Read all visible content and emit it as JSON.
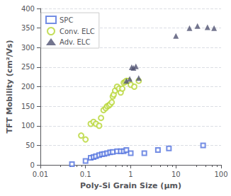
{
  "chart_data": {
    "type": "scatter",
    "xlabel": "Poly-Si Grain Size (μm)",
    "ylabel": "TFT Mobility (cm²/Vs)",
    "series": [
      {
        "name": "SPC",
        "marker": "open_square",
        "x": [
          0.05,
          0.1,
          0.13,
          0.15,
          0.17,
          0.2,
          0.23,
          0.26,
          0.3,
          0.35,
          0.4,
          0.5,
          0.6,
          0.7,
          0.8,
          1.0,
          2.0,
          4.0,
          7.0,
          40.0
        ],
        "values": [
          2,
          10,
          18,
          20,
          22,
          25,
          27,
          28,
          30,
          32,
          33,
          35,
          35,
          35,
          38,
          30,
          30,
          38,
          42,
          50
        ]
      },
      {
        "name": "Conv. ELC",
        "marker": "open_circle",
        "x": [
          0.08,
          0.1,
          0.13,
          0.15,
          0.17,
          0.2,
          0.22,
          0.25,
          0.28,
          0.3,
          0.33,
          0.35,
          0.38,
          0.4,
          0.42,
          0.45,
          0.5,
          0.55,
          0.6,
          0.65,
          0.7,
          0.75,
          0.8,
          0.9,
          1.0,
          1.2,
          1.5
        ],
        "values": [
          75,
          65,
          105,
          110,
          105,
          100,
          120,
          140,
          145,
          150,
          152,
          155,
          160,
          175,
          180,
          190,
          200,
          195,
          185,
          195,
          210,
          212,
          215,
          215,
          205,
          200,
          215
        ]
      },
      {
        "name": "Adv. ELC",
        "marker": "triangle",
        "x": [
          0.8,
          0.95,
          1.05,
          1.15,
          1.3,
          1.5,
          10.0,
          20.0,
          30.0,
          50.0,
          70.0
        ],
        "values": [
          215,
          220,
          250,
          248,
          252,
          222,
          330,
          350,
          355,
          352,
          350
        ]
      }
    ],
    "xlim": [
      0.01,
      100
    ],
    "xticks": [
      0.01,
      0.1,
      1,
      10,
      100
    ],
    "ylim": [
      0,
      400
    ],
    "yticks": [
      0,
      50,
      100,
      150,
      200,
      250,
      300,
      350,
      400
    ],
    "log": "x",
    "grid": "y",
    "legend": "upper left"
  }
}
